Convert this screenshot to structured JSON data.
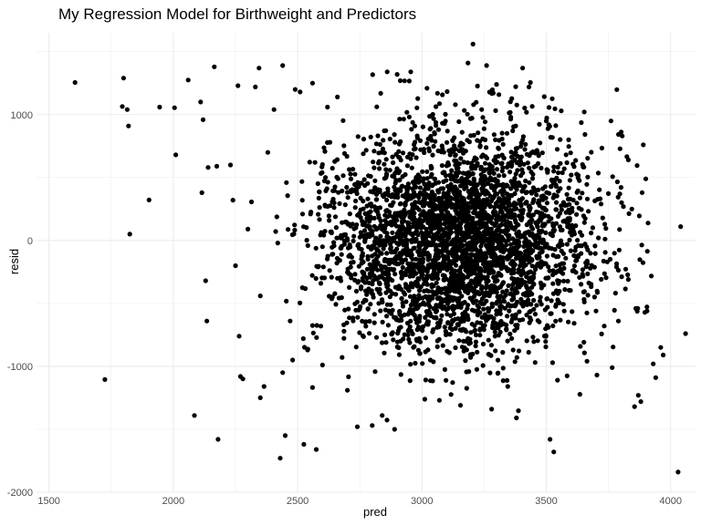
{
  "chart_data": {
    "type": "scatter",
    "title": "My Regression Model for Birthweight and Predictors",
    "xlabel": "pred",
    "ylabel": "resid",
    "xlim": [
      1450,
      4100
    ],
    "ylim": [
      -2000,
      1650
    ],
    "x_ticks": [
      1500,
      2000,
      2500,
      3000,
      3500,
      4000
    ],
    "y_ticks": [
      -2000,
      -1000,
      0,
      1000
    ],
    "grid": true,
    "point_color": "#000000",
    "cluster": {
      "x_center": 3150,
      "x_sd": 260,
      "y_center": 0,
      "y_sd": 420,
      "count": 3600
    },
    "points": [
      [
        1605,
        1255
      ],
      [
        1725,
        -1105
      ],
      [
        1800,
        1290
      ],
      [
        1795,
        1065
      ],
      [
        1815,
        1040
      ],
      [
        1820,
        910
      ],
      [
        1825,
        50
      ],
      [
        1945,
        1060
      ],
      [
        2005,
        1055
      ],
      [
        2010,
        680
      ],
      [
        2060,
        1275
      ],
      [
        2085,
        -1390
      ],
      [
        2110,
        1100
      ],
      [
        2115,
        380
      ],
      [
        2120,
        960
      ],
      [
        2130,
        -320
      ],
      [
        2135,
        -640
      ],
      [
        2140,
        580
      ],
      [
        2165,
        1380
      ],
      [
        2175,
        590
      ],
      [
        2180,
        -1580
      ],
      [
        2230,
        600
      ],
      [
        2240,
        320
      ],
      [
        2260,
        1230
      ],
      [
        2265,
        -760
      ],
      [
        2270,
        -1080
      ],
      [
        2280,
        -1100
      ],
      [
        2330,
        1220
      ],
      [
        2345,
        1370
      ],
      [
        2350,
        -1250
      ],
      [
        2365,
        -1160
      ],
      [
        2405,
        1040
      ],
      [
        2430,
        -1730
      ],
      [
        2440,
        1390
      ],
      [
        2450,
        -1550
      ],
      [
        2490,
        1200
      ],
      [
        2510,
        1180
      ],
      [
        2525,
        -1620
      ],
      [
        2560,
        1250
      ],
      [
        2575,
        -1660
      ],
      [
        2620,
        1060
      ],
      [
        2660,
        1140
      ],
      [
        2740,
        -1480
      ],
      [
        2800,
        -1470
      ],
      [
        2840,
        -1390
      ],
      [
        2860,
        1340
      ],
      [
        2890,
        -1500
      ],
      [
        2900,
        1320
      ],
      [
        2955,
        1340
      ],
      [
        3020,
        1210
      ],
      [
        3070,
        -1270
      ],
      [
        3155,
        -1310
      ],
      [
        3185,
        1410
      ],
      [
        3205,
        1560
      ],
      [
        3260,
        1390
      ],
      [
        3280,
        -1340
      ],
      [
        3300,
        1240
      ],
      [
        3345,
        -1160
      ],
      [
        3380,
        -1410
      ],
      [
        3405,
        1370
      ],
      [
        3430,
        1220
      ],
      [
        3500,
        950
      ],
      [
        3510,
        920
      ],
      [
        3515,
        -1580
      ],
      [
        3530,
        -1680
      ],
      [
        3545,
        -1110
      ],
      [
        3560,
        1030
      ],
      [
        3590,
        800
      ],
      [
        3720,
        290
      ],
      [
        3760,
        950
      ],
      [
        3765,
        -1010
      ],
      [
        3810,
        270
      ],
      [
        3855,
        -1320
      ],
      [
        3870,
        -1230
      ],
      [
        3880,
        -1280
      ],
      [
        3890,
        760
      ],
      [
        3900,
        490
      ],
      [
        3905,
        -560
      ],
      [
        3930,
        -980
      ],
      [
        3940,
        -1090
      ],
      [
        3960,
        -850
      ],
      [
        3970,
        -910
      ],
      [
        4030,
        -1840
      ],
      [
        4040,
        110
      ],
      [
        4060,
        -740
      ],
      [
        3700,
        -560
      ],
      [
        3650,
        -410
      ],
      [
        3680,
        60
      ],
      [
        3745,
        -170
      ],
      [
        3790,
        -640
      ],
      [
        3830,
        -310
      ],
      [
        3860,
        -540
      ],
      [
        3665,
        330
      ],
      [
        3600,
        520
      ],
      [
        2250,
        -200
      ],
      [
        2300,
        90
      ],
      [
        2350,
        -440
      ],
      [
        2380,
        700
      ],
      [
        2420,
        -20
      ],
      [
        2455,
        460
      ],
      [
        2470,
        -640
      ],
      [
        2520,
        210
      ],
      [
        2540,
        -870
      ],
      [
        2570,
        620
      ],
      [
        2600,
        -990
      ],
      [
        2440,
        -1050
      ],
      [
        2480,
        -950
      ],
      [
        2630,
        780
      ],
      [
        2660,
        -300
      ],
      [
        2700,
        -1190
      ]
    ]
  }
}
